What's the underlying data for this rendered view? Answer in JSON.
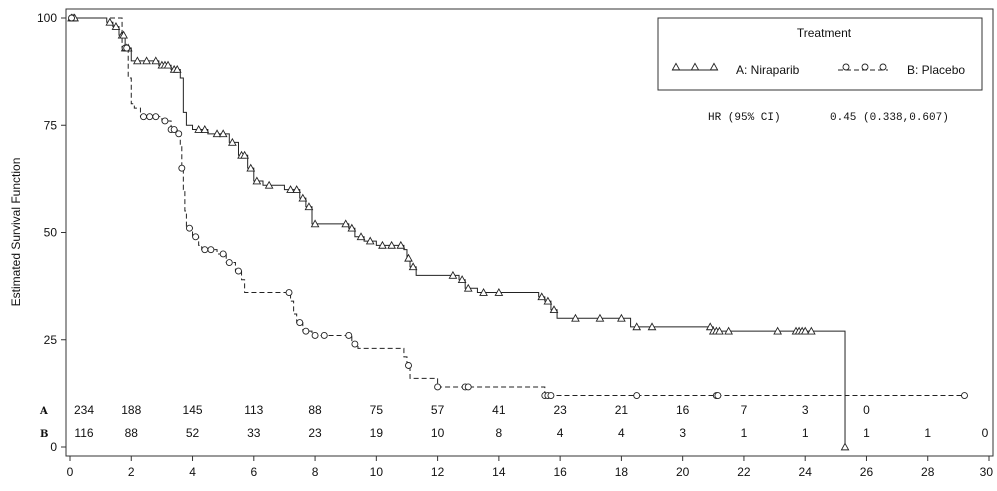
{
  "chart_data": {
    "type": "line",
    "subtype": "kaplan-meier step curve",
    "ylabel": "Estimated Survival Function",
    "xlabel": "",
    "xlim": [
      0,
      30
    ],
    "ylim": [
      0,
      100
    ],
    "x_ticks": [
      "0",
      "2",
      "4",
      "6",
      "8",
      "10",
      "12",
      "14",
      "16",
      "18",
      "20",
      "22",
      "24",
      "26",
      "28",
      "30"
    ],
    "y_ticks": [
      "0",
      "25",
      "50",
      "75",
      "100"
    ],
    "grid": false,
    "legend": {
      "title": "Treatment",
      "placement": "top-right",
      "entries": [
        {
          "label": "A: Niraparib",
          "marker": "triangle",
          "line": "solid"
        },
        {
          "label": "B: Placebo",
          "marker": "circle",
          "line": "dashed"
        }
      ]
    },
    "annotation": {
      "label": "HR (95% CI)",
      "value": "0.45 (0.338,0.607)"
    },
    "series": [
      {
        "name": "A: Niraparib",
        "color": "#222222",
        "style": "solid",
        "marker": "triangle",
        "steps": [
          [
            0,
            100
          ],
          [
            1.2,
            99
          ],
          [
            1.4,
            98
          ],
          [
            1.6,
            96
          ],
          [
            1.8,
            93
          ],
          [
            2.0,
            90
          ],
          [
            2.9,
            89
          ],
          [
            3.3,
            88
          ],
          [
            3.6,
            86
          ],
          [
            3.7,
            78
          ],
          [
            3.8,
            75
          ],
          [
            4.0,
            74
          ],
          [
            4.5,
            73
          ],
          [
            5.2,
            71
          ],
          [
            5.5,
            68
          ],
          [
            5.8,
            65
          ],
          [
            6.0,
            62
          ],
          [
            6.3,
            61
          ],
          [
            7.0,
            60
          ],
          [
            7.5,
            58
          ],
          [
            7.7,
            56
          ],
          [
            7.9,
            52
          ],
          [
            9.1,
            51
          ],
          [
            9.3,
            49
          ],
          [
            9.6,
            48
          ],
          [
            10.0,
            47
          ],
          [
            10.9,
            46
          ],
          [
            11.0,
            44
          ],
          [
            11.1,
            42
          ],
          [
            11.3,
            40
          ],
          [
            12.7,
            39
          ],
          [
            12.9,
            37
          ],
          [
            13.3,
            36
          ],
          [
            15.3,
            35
          ],
          [
            15.5,
            34
          ],
          [
            15.7,
            32
          ],
          [
            15.9,
            30
          ],
          [
            18.3,
            28
          ],
          [
            21.0,
            27
          ],
          [
            25.3,
            0
          ]
        ],
        "censor_times": [
          0.05,
          0.1,
          0.15,
          1.3,
          1.5,
          1.7,
          1.75,
          1.8,
          1.85,
          1.9,
          2.2,
          2.5,
          2.8,
          3.0,
          3.1,
          3.2,
          3.4,
          3.5,
          4.2,
          4.4,
          4.8,
          5.0,
          5.3,
          5.6,
          5.7,
          5.9,
          6.1,
          6.5,
          7.2,
          7.4,
          7.6,
          7.8,
          8.0,
          9.0,
          9.2,
          9.5,
          9.8,
          10.2,
          10.5,
          10.8,
          11.05,
          11.2,
          12.5,
          12.8,
          13.0,
          13.5,
          14.0,
          15.4,
          15.6,
          15.8,
          16.5,
          17.3,
          18.0,
          18.5,
          19.0,
          20.9,
          21.0,
          21.1,
          21.2,
          21.5,
          23.1,
          23.7,
          23.8,
          23.9,
          24.0,
          24.2,
          25.3
        ]
      },
      {
        "name": "B: Placebo",
        "color": "#222222",
        "style": "dashed",
        "marker": "circle",
        "steps": [
          [
            0,
            100
          ],
          [
            1.7,
            93
          ],
          [
            1.9,
            86
          ],
          [
            2.0,
            80
          ],
          [
            2.1,
            79
          ],
          [
            2.3,
            77
          ],
          [
            3.0,
            76
          ],
          [
            3.3,
            74
          ],
          [
            3.5,
            73
          ],
          [
            3.6,
            70
          ],
          [
            3.65,
            65
          ],
          [
            3.7,
            60
          ],
          [
            3.75,
            55
          ],
          [
            3.8,
            51
          ],
          [
            4.0,
            49
          ],
          [
            4.2,
            47
          ],
          [
            4.3,
            46
          ],
          [
            4.8,
            45
          ],
          [
            5.1,
            43
          ],
          [
            5.4,
            41
          ],
          [
            5.6,
            39
          ],
          [
            5.7,
            36
          ],
          [
            7.2,
            34
          ],
          [
            7.3,
            31
          ],
          [
            7.4,
            29
          ],
          [
            7.6,
            27
          ],
          [
            7.9,
            26
          ],
          [
            9.2,
            24
          ],
          [
            9.4,
            23
          ],
          [
            10.9,
            21
          ],
          [
            11.0,
            19
          ],
          [
            11.1,
            16
          ],
          [
            12.0,
            14
          ],
          [
            15.5,
            12
          ]
        ],
        "censor_times": [
          0.05,
          1.8,
          1.85,
          2.4,
          2.6,
          2.8,
          3.1,
          3.3,
          3.4,
          3.55,
          3.65,
          3.9,
          4.1,
          4.4,
          4.6,
          5.0,
          5.2,
          5.5,
          7.15,
          7.5,
          7.7,
          8.0,
          8.3,
          9.1,
          9.3,
          11.05,
          12.0,
          12.9,
          13.0,
          15.5,
          15.6,
          15.7,
          18.5,
          21.1,
          21.15,
          29.2
        ]
      }
    ],
    "risk_table": {
      "rows": [
        {
          "label": "A",
          "counts": [
            "234",
            "188",
            "145",
            "113",
            "88",
            "75",
            "57",
            "41",
            "23",
            "21",
            "16",
            "7",
            "3",
            "0"
          ]
        },
        {
          "label": "B",
          "counts": [
            "116",
            "88",
            "52",
            "33",
            "23",
            "19",
            "10",
            "8",
            "4",
            "4",
            "3",
            "1",
            "1",
            "1",
            "1",
            "0"
          ]
        }
      ],
      "times": [
        0,
        2,
        4,
        6,
        8,
        10,
        12,
        14,
        16,
        18,
        20,
        22,
        24,
        26,
        28,
        30
      ]
    }
  }
}
